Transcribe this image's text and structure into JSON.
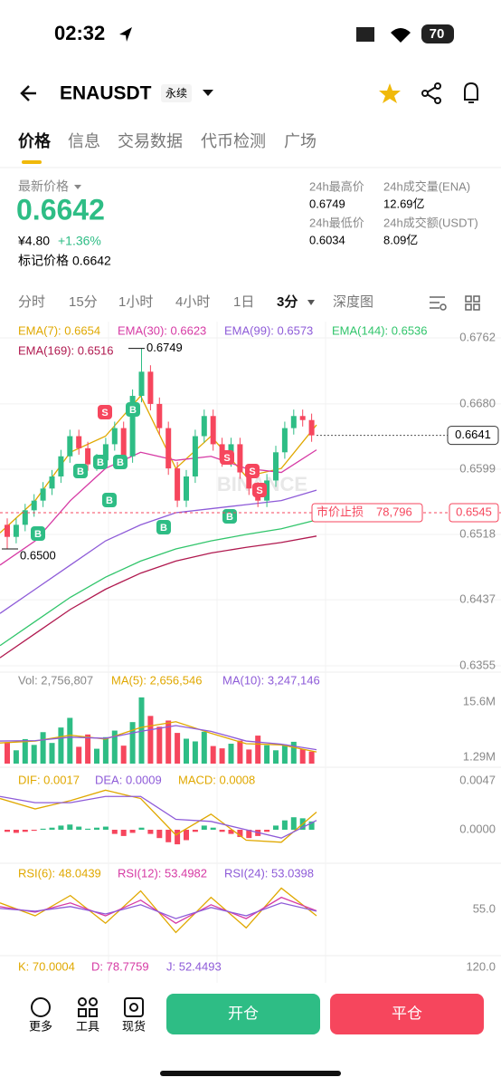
{
  "status_bar": {
    "time": "02:32",
    "battery": "70"
  },
  "header": {
    "symbol": "ENAUSDT",
    "contract": "永续"
  },
  "tabs": [
    "价格",
    "信息",
    "交易数据",
    "代币检测",
    "广场"
  ],
  "price": {
    "label": "最新价格",
    "last": "0.6642",
    "cny": "¥4.80",
    "change": "+1.36%",
    "mark_label": "标记价格",
    "mark": "0.6642"
  },
  "stats": [
    {
      "label": "24h最高价",
      "value": "0.6749"
    },
    {
      "label": "24h成交量(ENA)",
      "value": "12.69亿"
    },
    {
      "label": "24h最低价",
      "value": "0.6034"
    },
    {
      "label": "24h成交额(USDT)",
      "value": "8.09亿"
    }
  ],
  "intervals": [
    "分时",
    "15分",
    "1小时",
    "4小时",
    "1日",
    "3分",
    "深度图"
  ],
  "chart": {
    "ema": [
      {
        "name": "EMA(7): 0.6654",
        "color": "#e0a800",
        "values": [
          0.652,
          0.656,
          0.662,
          0.664,
          0.669,
          0.66,
          0.664,
          0.659,
          0.66,
          0.6654
        ]
      },
      {
        "name": "EMA(30): 0.6623",
        "color": "#d63aa4",
        "values": [
          0.648,
          0.651,
          0.656,
          0.66,
          0.662,
          0.661,
          0.6615,
          0.66,
          0.6595,
          0.6623
        ]
      },
      {
        "name": "EMA(99): 0.6573",
        "color": "#8e5bd8",
        "values": [
          0.642,
          0.645,
          0.648,
          0.651,
          0.653,
          0.6545,
          0.655,
          0.6555,
          0.656,
          0.6573
        ]
      },
      {
        "name": "EMA(144): 0.6536",
        "color": "#31c56b",
        "values": [
          0.638,
          0.641,
          0.644,
          0.6465,
          0.6485,
          0.65,
          0.651,
          0.6518,
          0.6525,
          0.6536
        ]
      },
      {
        "name": "EMA(169): 0.6516",
        "color": "#b0194f",
        "values": [
          0.6365,
          0.6395,
          0.6425,
          0.645,
          0.647,
          0.6485,
          0.6495,
          0.6502,
          0.6508,
          0.6516
        ]
      }
    ],
    "price_ticks": [
      0.6762,
      {
        "value": 0.668,
        "label": "0.6680"
      },
      0.6599,
      0.6518,
      0.6437,
      0.6355
    ],
    "candles": {
      "open": [
        0.653,
        0.6515,
        0.653,
        0.6548,
        0.656,
        0.6575,
        0.659,
        0.6615,
        0.664,
        0.6625,
        0.6605,
        0.661,
        0.663,
        0.665,
        0.6615,
        0.669,
        0.672,
        0.668,
        0.665,
        0.66,
        0.656,
        0.659,
        0.664,
        0.6665,
        0.663,
        0.661,
        0.663,
        0.6595,
        0.6575,
        0.656,
        0.6585,
        0.662,
        0.665,
        0.6665,
        0.666
      ],
      "high": [
        0.6538,
        0.6538,
        0.6556,
        0.6568,
        0.6583,
        0.6598,
        0.6623,
        0.6648,
        0.6648,
        0.6633,
        0.6618,
        0.6638,
        0.6658,
        0.6658,
        0.6698,
        0.6749,
        0.6728,
        0.6688,
        0.6658,
        0.6608,
        0.6598,
        0.6648,
        0.6673,
        0.6673,
        0.6638,
        0.6638,
        0.6638,
        0.6603,
        0.6583,
        0.6593,
        0.6628,
        0.6658,
        0.6673,
        0.6673,
        0.6668
      ],
      "low": [
        0.65,
        0.6507,
        0.6522,
        0.654,
        0.6552,
        0.6567,
        0.6582,
        0.6607,
        0.6617,
        0.6597,
        0.6597,
        0.6602,
        0.6622,
        0.6607,
        0.6607,
        0.6682,
        0.6672,
        0.6642,
        0.6592,
        0.6552,
        0.6552,
        0.6582,
        0.6632,
        0.6622,
        0.6602,
        0.6602,
        0.6587,
        0.6567,
        0.6552,
        0.6552,
        0.6577,
        0.6612,
        0.6642,
        0.6652,
        0.6633
      ],
      "close": [
        0.6515,
        0.653,
        0.6548,
        0.656,
        0.6575,
        0.659,
        0.6615,
        0.664,
        0.6625,
        0.6605,
        0.661,
        0.663,
        0.665,
        0.6615,
        0.669,
        0.672,
        0.668,
        0.665,
        0.66,
        0.656,
        0.659,
        0.664,
        0.6665,
        0.663,
        0.661,
        0.663,
        0.6595,
        0.6575,
        0.656,
        0.6585,
        0.662,
        0.665,
        0.6665,
        0.666,
        0.6641
      ]
    },
    "annotations": {
      "high": 0.6749,
      "low": {
        "value": 0.65,
        "label": "0.6500"
      },
      "current": 0.6641,
      "stop_label": "市价止损",
      "stop_qty": "78,796",
      "stop_price": 0.6545
    },
    "markers": [
      "B",
      "B",
      "B",
      "B",
      "B",
      "S",
      "S",
      "B",
      "S",
      "S",
      "B",
      "B"
    ],
    "watermark": "BINANCE"
  },
  "volume": {
    "labels": [
      "Vol: 2,756,807",
      "MA(5): 2,656,546",
      "MA(10): 3,247,146"
    ],
    "ticks": [
      {
        "value": 15600000,
        "label": "15.6M"
      },
      {
        "value": 1290000,
        "label": "1.29M"
      }
    ],
    "values": [
      5200000,
      3100000,
      6000000,
      4500000,
      7800000,
      5000000,
      9000000,
      11500000,
      4000000,
      7200000,
      3500000,
      6500000,
      8200000,
      4300000,
      10400000,
      16800000,
      12000000,
      9200000,
      10800000,
      7600000,
      6100000,
      5400000,
      7900000,
      4200000,
      3600000,
      4800000,
      5600000,
      3300000,
      6900000,
      4400000,
      3100000,
      4600000,
      5300000,
      3400000,
      2756807
    ],
    "ma": [
      {
        "color": "#e0a800",
        "values": [
          5000000,
          5500000,
          7000000,
          6000000,
          9000000,
          10500000,
          7500000,
          4800000,
          4500000,
          2656546
        ]
      },
      {
        "color": "#8e5bd8",
        "values": [
          5500000,
          5600000,
          6500000,
          6200000,
          8000000,
          9500000,
          8000000,
          5500000,
          4700000,
          3247146
        ]
      }
    ]
  },
  "macd": {
    "labels": [
      "DIF: 0.0017",
      "DEA: 0.0009",
      "MACD: 0.0008"
    ],
    "ticks": [
      0.0047,
      {
        "value": 0,
        "label": "0.0000"
      }
    ],
    "hist": [
      -0.0002,
      -0.0003,
      -0.0002,
      -0.0001,
      0.0001,
      0.0002,
      0.0004,
      0.0005,
      0.0003,
      0.0001,
      0.0002,
      0.0003,
      -0.0004,
      -0.0006,
      -0.0003,
      0.0002,
      -0.0004,
      -0.0008,
      -0.0012,
      -0.0014,
      -0.001,
      -0.0002,
      0.0004,
      0.0002,
      -0.0002,
      -0.0004,
      -0.0007,
      -0.0008,
      -0.0006,
      -0.0002,
      0.0004,
      0.0009,
      0.0012,
      0.0011,
      0.0008
    ],
    "lines": [
      {
        "color": "#e0a800",
        "values": [
          0.003,
          0.002,
          0.0028,
          0.0038,
          0.003,
          -0.0005,
          0.0015,
          -0.001,
          -0.0012,
          0.0017
        ]
      },
      {
        "color": "#8e5bd8",
        "values": [
          0.0032,
          0.0026,
          0.0026,
          0.0032,
          0.0032,
          0.001,
          0.0008,
          0,
          -0.0008,
          0.0009
        ]
      }
    ]
  },
  "rsi": {
    "labels": [
      "RSI(6): 48.0439",
      "RSI(12): 53.4982",
      "RSI(24): 53.0398"
    ],
    "ticks": [
      {
        "value": 55,
        "label": "55.0"
      }
    ],
    "lines": [
      {
        "color": "#e0a800",
        "values": [
          62,
          48,
          70,
          40,
          75,
          30,
          68,
          35,
          78,
          48.0439
        ]
      },
      {
        "color": "#d63aa4",
        "values": [
          58,
          52,
          62,
          48,
          65,
          40,
          60,
          45,
          68,
          53.4982
        ]
      },
      {
        "color": "#8e5bd8",
        "values": [
          56,
          53,
          58,
          50,
          60,
          45,
          57,
          48,
          62,
          53.0398
        ]
      }
    ]
  },
  "kdj": {
    "labels": [
      "K: 70.0004",
      "D: 78.7759",
      "J: 52.4493"
    ],
    "ticks": [
      {
        "value": 120,
        "label": "120.0"
      }
    ]
  },
  "bottom": {
    "actions": [
      "更多",
      "工具",
      "现货"
    ],
    "open": "开仓",
    "close": "平仓"
  }
}
